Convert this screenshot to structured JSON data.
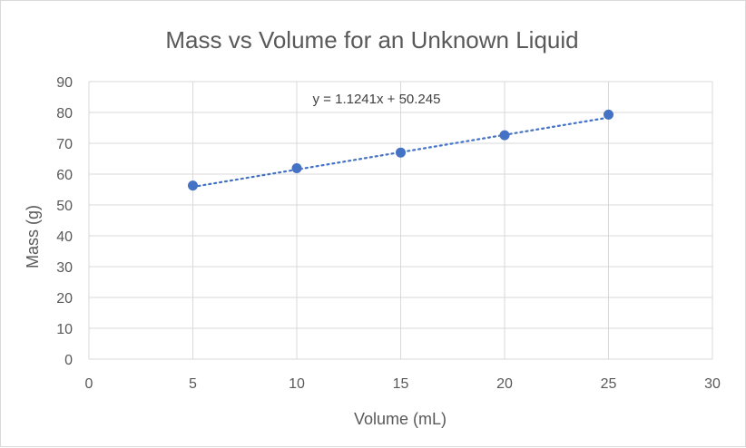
{
  "chart_data": {
    "type": "scatter",
    "title": "Mass vs Volume for an Unknown Liquid",
    "xlabel": "Volume (mL)",
    "ylabel": "Mass (g)",
    "xlim": [
      0,
      30
    ],
    "ylim": [
      0,
      90
    ],
    "x_ticks": [
      0,
      5,
      10,
      15,
      20,
      25,
      30
    ],
    "y_ticks": [
      0,
      10,
      20,
      30,
      40,
      50,
      60,
      70,
      80,
      90
    ],
    "grid": true,
    "legend": "none",
    "series": [
      {
        "x": [
          5,
          10,
          15,
          20,
          25
        ],
        "y": [
          56.3,
          61.9,
          67.0,
          72.6,
          79.3
        ],
        "color": "#4472C4"
      }
    ],
    "trendline": {
      "type": "linear",
      "slope": 1.1241,
      "intercept": 50.245,
      "x_range": [
        5,
        25
      ],
      "style": "dotted",
      "color": "#4472C4",
      "equation": "y = 1.1241x + 50.245"
    },
    "colors": {
      "grid": "#d9d9d9",
      "text": "#595959",
      "marker": "#4472C4"
    }
  }
}
